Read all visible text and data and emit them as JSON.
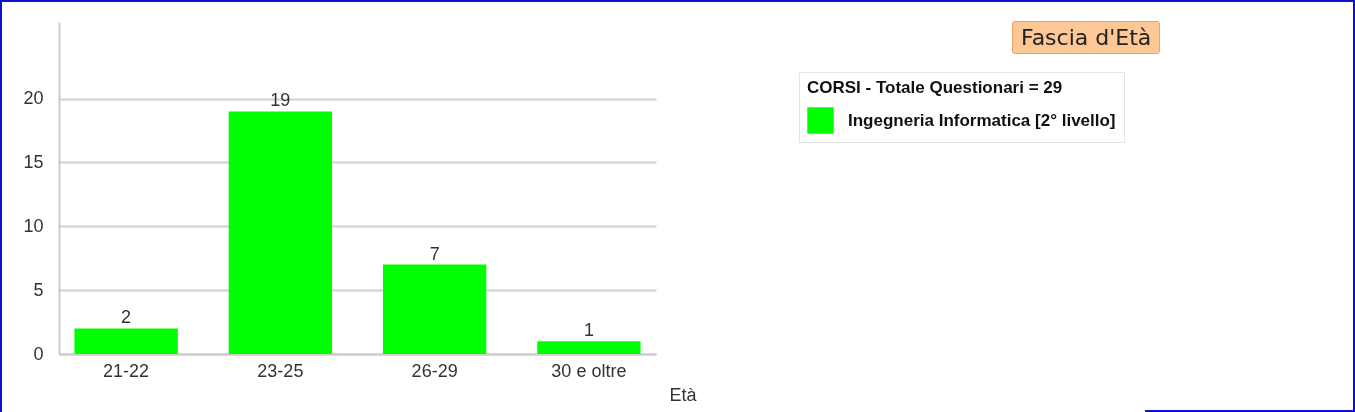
{
  "chart_data": {
    "type": "bar",
    "title": "Fascia d'Età",
    "xlabel": "Età",
    "legend_title": "CORSI - Totale Questionari = 29",
    "categories": [
      "21-22",
      "23-25",
      "26-29",
      "30 e oltre"
    ],
    "series": [
      {
        "name": "Ingegneria Informatica [2° livello]",
        "color": "#00ff00",
        "values": [
          2,
          19,
          7,
          1
        ]
      }
    ],
    "ylim": [
      0,
      26
    ],
    "yticks": [
      0,
      5,
      10,
      15,
      20
    ],
    "grid": "y",
    "legend": "top right",
    "data_labels": true
  }
}
